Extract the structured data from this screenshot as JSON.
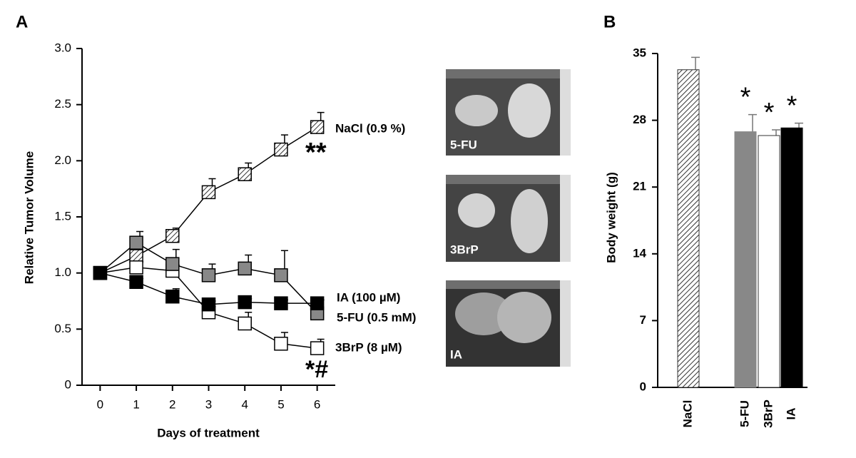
{
  "chart_data": [
    {
      "type": "line",
      "panel_label": "A",
      "xlabel": "Days of treatment",
      "ylabel": "Relative Tumor Volume",
      "x": [
        0,
        1,
        2,
        3,
        4,
        5,
        6
      ],
      "xlim": [
        -0.5,
        6.5
      ],
      "xticks": [
        0,
        1,
        2,
        3,
        4,
        5,
        6
      ],
      "ylim": [
        0,
        3
      ],
      "yticks": [
        0,
        0.5,
        {
          "value": 1,
          "label": "1.0"
        },
        1.5,
        {
          "value": 2,
          "label": "2.0"
        },
        2.5,
        {
          "value": 3,
          "label": "3.0"
        }
      ],
      "series": [
        {
          "name": "NaCl (0.9 %)",
          "color": "#ffffff",
          "hatch": true,
          "values": [
            1.0,
            1.15,
            1.33,
            1.72,
            1.88,
            2.1,
            2.3
          ],
          "errors": [
            0,
            0.05,
            0.07,
            0.12,
            0.1,
            0.13,
            0.13
          ]
        },
        {
          "name": "3BrP (8 µM)",
          "color": "#ffffff",
          "hatch": false,
          "values": [
            1.0,
            1.05,
            1.02,
            0.65,
            0.55,
            0.37,
            0.33
          ],
          "errors": [
            0,
            0.05,
            0.05,
            0.05,
            0.1,
            0.1,
            0.08
          ]
        },
        {
          "name": "5-FU (0.5 mM)",
          "color": "#888888",
          "hatch": false,
          "values": [
            1.0,
            1.27,
            1.08,
            0.98,
            1.04,
            0.98,
            0.64
          ],
          "errors": [
            0,
            0.1,
            0.13,
            0.1,
            0.12,
            0.22,
            0
          ]
        },
        {
          "name": "IA (100 µM)",
          "color": "#000000",
          "hatch": false,
          "values": [
            1.0,
            0.92,
            0.79,
            0.72,
            0.74,
            0.73,
            0.73
          ],
          "errors": [
            0,
            0.03,
            0.07,
            0.03,
            0.03,
            0.03,
            0.03
          ]
        }
      ],
      "annotations": [
        "**",
        "*#"
      ],
      "photo_labels": [
        "5-FU",
        "3BrP",
        "IA"
      ]
    },
    {
      "type": "bar",
      "panel_label": "B",
      "ylabel": "Body weight (g)",
      "categories": [
        "NaCl",
        "5-FU",
        "3BrP",
        "IA"
      ],
      "values": [
        33.3,
        26.8,
        26.4,
        27.2
      ],
      "errors": [
        1.3,
        1.8,
        0.6,
        0.5
      ],
      "colors": [
        "#ffffff",
        "#888888",
        "#ffffff",
        "#000000"
      ],
      "hatched": [
        true,
        false,
        false,
        false
      ],
      "significance": [
        null,
        "*",
        "*",
        "*"
      ],
      "ylim": [
        0,
        35
      ],
      "yticks": [
        0,
        7,
        14,
        21,
        28,
        35
      ]
    }
  ]
}
